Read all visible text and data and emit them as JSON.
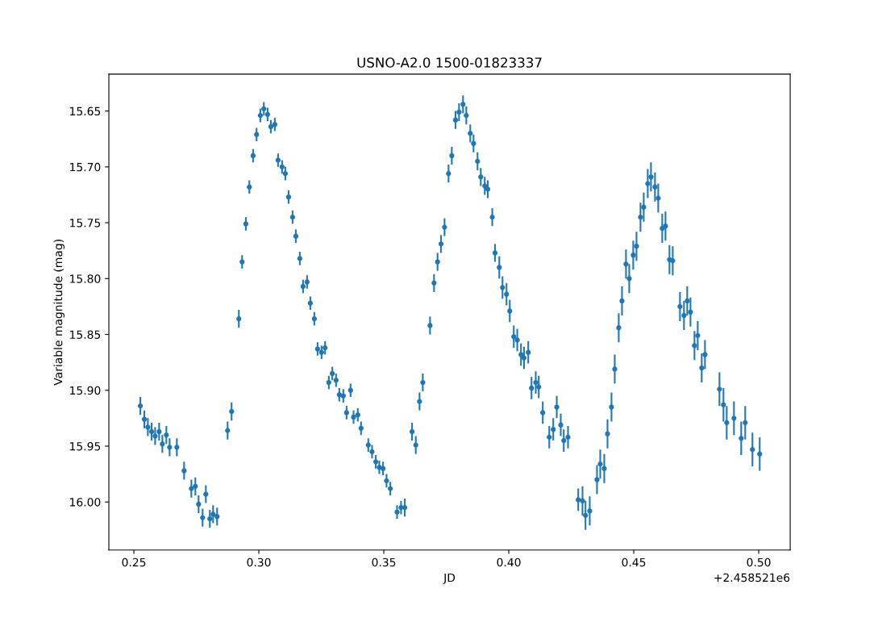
{
  "chart_data": {
    "type": "scatter",
    "title": "USNO-A2.0 1500-01823337",
    "xlabel": "JD",
    "ylabel": "Variable magnitude (mag)",
    "annotations": [
      "+2.458521e6"
    ],
    "xlim": [
      0.24,
      0.5126
    ],
    "ylim": [
      16.043,
      15.617
    ],
    "xticks": [
      {
        "value": 0.25,
        "label": "0.25"
      },
      {
        "value": 0.3,
        "label": "0.30"
      },
      {
        "value": 0.35,
        "label": "0.35"
      },
      {
        "value": 0.4,
        "label": "0.40"
      },
      {
        "value": 0.45,
        "label": "0.45"
      },
      {
        "value": 0.5,
        "label": "0.50"
      }
    ],
    "yticks": [
      {
        "value": 15.65,
        "label": "15.65"
      },
      {
        "value": 15.7,
        "label": "15.70"
      },
      {
        "value": 15.75,
        "label": "15.75"
      },
      {
        "value": 15.8,
        "label": "15.80"
      },
      {
        "value": 15.85,
        "label": "15.85"
      },
      {
        "value": 15.9,
        "label": "15.90"
      },
      {
        "value": 15.95,
        "label": "15.95"
      },
      {
        "value": 16.0,
        "label": "16.00"
      }
    ],
    "grid": false,
    "marker": "circle",
    "series": [
      {
        "color": "#1f77b4",
        "x": [
          0.2526,
          0.2542,
          0.2556,
          0.2571,
          0.2585,
          0.2601,
          0.2614,
          0.263,
          0.2643,
          0.2672,
          0.2701,
          0.273,
          0.2746,
          0.2759,
          0.2775,
          0.2788,
          0.2804,
          0.2817,
          0.2833,
          0.2875,
          0.2891,
          0.292,
          0.2933,
          0.2948,
          0.2962,
          0.2977,
          0.2991,
          0.3006,
          0.302,
          0.3035,
          0.3048,
          0.3064,
          0.3077,
          0.3093,
          0.3106,
          0.3119,
          0.3135,
          0.3148,
          0.3164,
          0.3177,
          0.3193,
          0.3206,
          0.3222,
          0.3235,
          0.3251,
          0.3265,
          0.328,
          0.3294,
          0.3309,
          0.3322,
          0.3338,
          0.3351,
          0.3367,
          0.3379,
          0.3396,
          0.3409,
          0.3438,
          0.3453,
          0.3468,
          0.3482,
          0.3497,
          0.3511,
          0.3526,
          0.3553,
          0.3569,
          0.3584,
          0.3613,
          0.3628,
          0.3643,
          0.3656,
          0.3685,
          0.3701,
          0.3715,
          0.3729,
          0.3743,
          0.3759,
          0.3772,
          0.3787,
          0.3801,
          0.3817,
          0.383,
          0.3846,
          0.3859,
          0.3875,
          0.3888,
          0.3904,
          0.3916,
          0.3934,
          0.3945,
          0.3962,
          0.3975,
          0.3991,
          0.4004,
          0.402,
          0.4034,
          0.4049,
          0.4061,
          0.4078,
          0.4091,
          0.4108,
          0.412,
          0.4136,
          0.4162,
          0.4178,
          0.4192,
          0.4208,
          0.422,
          0.4237,
          0.4278,
          0.4295,
          0.4307,
          0.4324,
          0.4353,
          0.4366,
          0.4382,
          0.4395,
          0.4411,
          0.4424,
          0.444,
          0.4453,
          0.4469,
          0.4482,
          0.4498,
          0.4511,
          0.4527,
          0.454,
          0.4556,
          0.4569,
          0.4585,
          0.4598,
          0.4614,
          0.4627,
          0.4643,
          0.4656,
          0.4685,
          0.4701,
          0.4714,
          0.4727,
          0.4743,
          0.4756,
          0.4772,
          0.4785,
          0.4843,
          0.4859,
          0.4872,
          0.4901,
          0.493,
          0.4946,
          0.4975,
          0.5004
        ],
        "values": [
          15.914,
          15.926,
          15.933,
          15.937,
          15.941,
          15.937,
          15.948,
          15.94,
          15.951,
          15.951,
          15.972,
          15.988,
          15.986,
          16.002,
          16.014,
          15.993,
          16.015,
          16.011,
          16.013,
          15.936,
          15.919,
          15.836,
          15.785,
          15.751,
          15.718,
          15.69,
          15.671,
          15.654,
          15.648,
          15.653,
          15.664,
          15.662,
          15.694,
          15.7,
          15.706,
          15.727,
          15.745,
          15.762,
          15.782,
          15.807,
          15.803,
          15.822,
          15.836,
          15.863,
          15.866,
          15.862,
          15.893,
          15.885,
          15.891,
          15.904,
          15.905,
          15.92,
          15.9,
          15.924,
          15.922,
          15.934,
          15.949,
          15.955,
          15.964,
          15.969,
          15.97,
          15.981,
          15.988,
          16.009,
          16.005,
          16.005,
          15.937,
          15.949,
          15.91,
          15.893,
          15.842,
          15.804,
          15.785,
          15.769,
          15.754,
          15.706,
          15.69,
          15.658,
          15.651,
          15.644,
          15.654,
          15.67,
          15.679,
          15.695,
          15.709,
          15.717,
          15.72,
          15.745,
          15.777,
          15.79,
          15.808,
          15.814,
          15.829,
          15.852,
          15.855,
          15.868,
          15.871,
          15.866,
          15.898,
          15.893,
          15.897,
          15.92,
          15.942,
          15.935,
          15.915,
          15.931,
          15.945,
          15.942,
          15.998,
          15.999,
          16.012,
          16.008,
          15.98,
          15.966,
          15.97,
          15.939,
          15.915,
          15.881,
          15.844,
          15.82,
          15.787,
          15.8,
          15.779,
          15.771,
          15.745,
          15.736,
          15.715,
          15.709,
          15.718,
          15.728,
          15.755,
          15.753,
          15.783,
          15.784,
          15.825,
          15.833,
          15.82,
          15.83,
          15.86,
          15.851,
          15.88,
          15.868,
          15.899,
          15.913,
          15.929,
          15.925,
          15.943,
          15.929,
          15.953,
          15.957
        ],
        "errors": [
          0.008,
          0.008,
          0.008,
          0.008,
          0.008,
          0.008,
          0.008,
          0.008,
          0.008,
          0.008,
          0.008,
          0.008,
          0.008,
          0.008,
          0.008,
          0.008,
          0.008,
          0.008,
          0.008,
          0.008,
          0.008,
          0.008,
          0.006,
          0.006,
          0.006,
          0.006,
          0.006,
          0.006,
          0.006,
          0.006,
          0.006,
          0.006,
          0.006,
          0.006,
          0.006,
          0.006,
          0.006,
          0.006,
          0.006,
          0.006,
          0.006,
          0.006,
          0.006,
          0.006,
          0.006,
          0.006,
          0.006,
          0.006,
          0.006,
          0.006,
          0.006,
          0.006,
          0.006,
          0.006,
          0.006,
          0.006,
          0.006,
          0.006,
          0.006,
          0.006,
          0.006,
          0.006,
          0.006,
          0.006,
          0.006,
          0.008,
          0.008,
          0.008,
          0.008,
          0.008,
          0.008,
          0.008,
          0.008,
          0.008,
          0.008,
          0.008,
          0.008,
          0.008,
          0.008,
          0.008,
          0.008,
          0.008,
          0.008,
          0.008,
          0.008,
          0.008,
          0.008,
          0.008,
          0.008,
          0.01,
          0.01,
          0.01,
          0.01,
          0.01,
          0.01,
          0.01,
          0.01,
          0.01,
          0.01,
          0.01,
          0.01,
          0.01,
          0.01,
          0.01,
          0.01,
          0.01,
          0.01,
          0.01,
          0.01,
          0.013,
          0.013,
          0.013,
          0.013,
          0.013,
          0.013,
          0.013,
          0.013,
          0.013,
          0.013,
          0.013,
          0.013,
          0.013,
          0.013,
          0.013,
          0.013,
          0.013,
          0.013,
          0.013,
          0.013,
          0.013,
          0.013,
          0.013,
          0.013,
          0.013,
          0.013,
          0.013,
          0.013,
          0.013,
          0.013,
          0.013,
          0.013,
          0.013,
          0.015,
          0.015,
          0.015,
          0.015,
          0.015,
          0.015,
          0.015,
          0.015
        ]
      }
    ]
  }
}
